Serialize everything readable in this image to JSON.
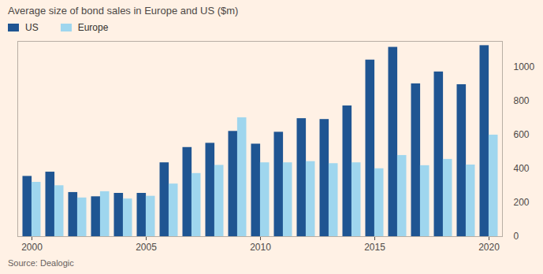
{
  "chart_data": {
    "type": "bar",
    "title": "Average size of bond sales in Europe and US ($m)",
    "caption": "Source: Dealogic",
    "categories": [
      2000,
      2001,
      2002,
      2003,
      2004,
      2005,
      2006,
      2007,
      2008,
      2009,
      2010,
      2011,
      2012,
      2013,
      2014,
      2015,
      2016,
      2017,
      2018,
      2019,
      2020
    ],
    "series": [
      {
        "name": "US",
        "color": "#1f5592",
        "values": [
          355,
          380,
          260,
          235,
          255,
          255,
          435,
          525,
          550,
          620,
          545,
          615,
          695,
          690,
          770,
          1040,
          1115,
          900,
          970,
          895,
          1125
        ]
      },
      {
        "name": "Europe",
        "color": "#9fd6ee",
        "values": [
          320,
          300,
          228,
          265,
          222,
          238,
          310,
          372,
          420,
          700,
          435,
          435,
          442,
          430,
          435,
          400,
          478,
          418,
          455,
          422,
          598
        ]
      }
    ],
    "xticks": [
      2000,
      2005,
      2010,
      2015,
      2020
    ],
    "ylim": [
      0,
      1150
    ],
    "yticks": [
      0,
      200,
      400,
      600,
      800,
      1000
    ],
    "grid": false,
    "legend": "top-left"
  }
}
